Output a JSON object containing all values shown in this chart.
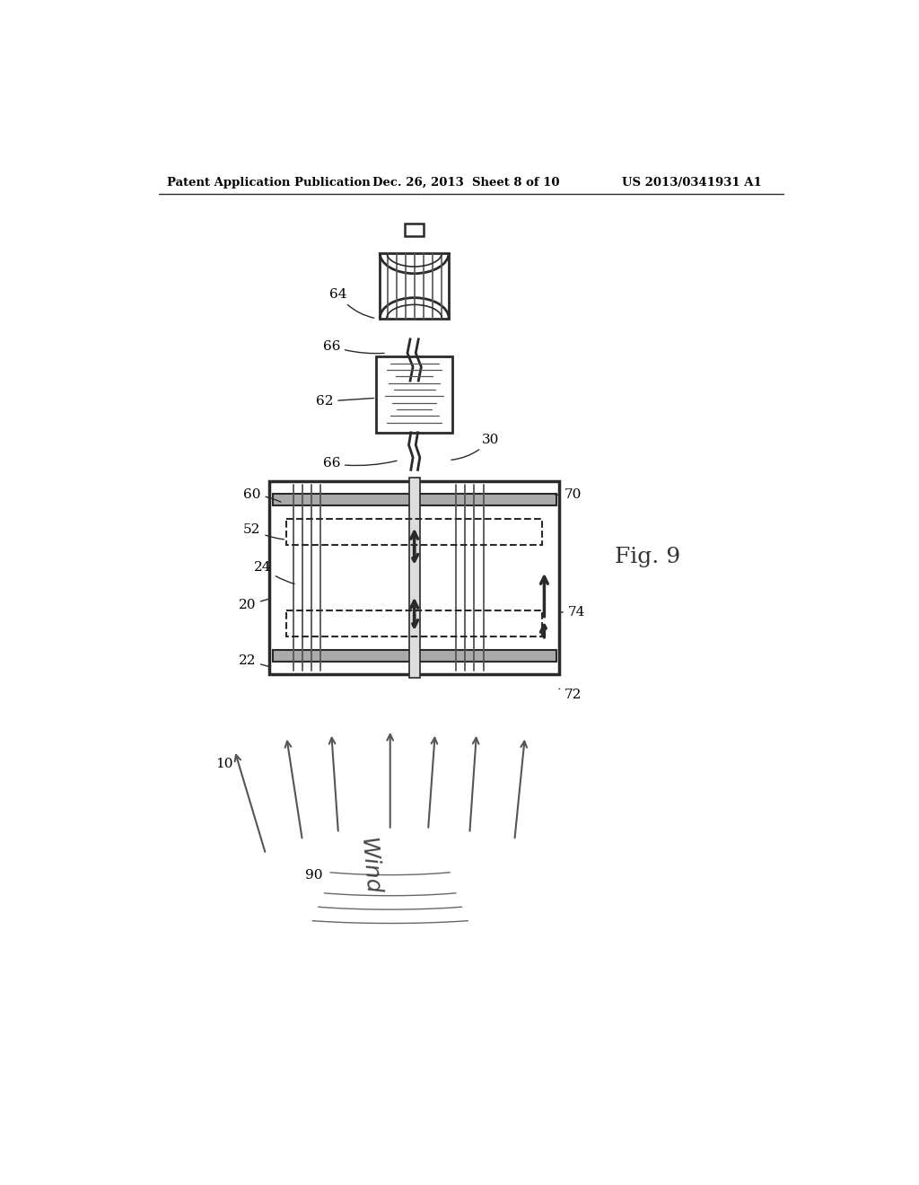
{
  "bg_color": "#ffffff",
  "header_left": "Patent Application Publication",
  "header_mid": "Dec. 26, 2013  Sheet 8 of 10",
  "header_right": "US 2013/0341931 A1",
  "fig_label": "Fig. 9",
  "line_color": "#2a2a2a",
  "fill_light": "#e8e8e8",
  "fill_plate": "#c0c0c0"
}
